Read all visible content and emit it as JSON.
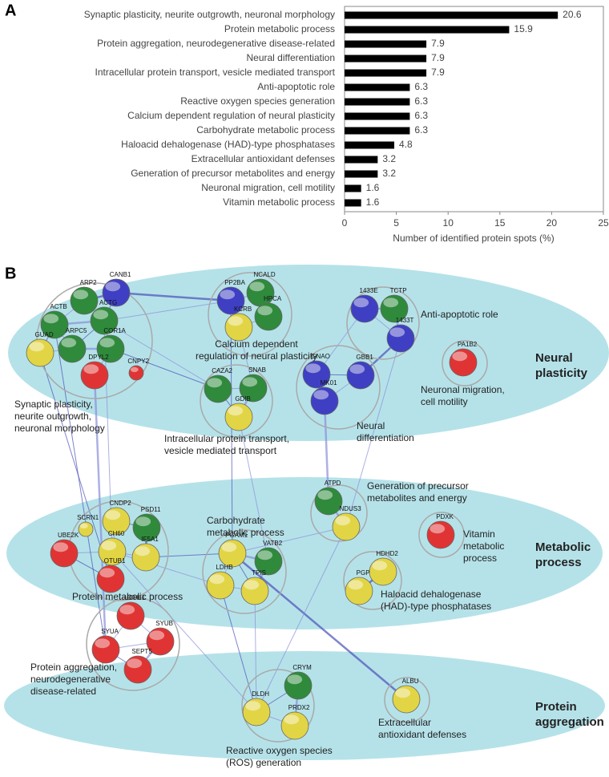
{
  "panel_labels": [
    "A",
    "B"
  ],
  "chart_data": {
    "type": "barh",
    "categories": [
      "Synaptic plasticity, neurite outgrowth, neuronal morphology",
      "Protein metabolic process",
      "Protein aggregation, neurodegenerative disease-related",
      "Neural differentiation",
      "Intracellular protein transport, vesicle mediated transport",
      "Anti-apoptotic role",
      "Reactive oxygen species generation",
      "Calcium dependent regulation of neural plasticity",
      "Carbohydrate metabolic process",
      "Haloacid dehalogenase (HAD)-type phosphatases",
      "Extracellular antioxidant defenses",
      "Generation of precursor metabolites and energy",
      "Neuronal migration, cell motility",
      "Vitamin metabolic process"
    ],
    "values": [
      20.6,
      15.9,
      7.9,
      7.9,
      7.9,
      6.3,
      6.3,
      6.3,
      6.3,
      4.8,
      3.2,
      3.2,
      1.6,
      1.6
    ],
    "color": "#000000",
    "xlabel": "Number of identified protein spots (%)",
    "xlim": [
      0,
      25
    ],
    "xticks": [
      0,
      5,
      10,
      15,
      20,
      25
    ]
  },
  "network": {
    "groups": [
      {
        "lines": [
          "Neural",
          "plasticity"
        ]
      },
      {
        "lines": [
          "Metabolic",
          "process"
        ]
      },
      {
        "lines": [
          "Protein",
          "aggregation"
        ]
      }
    ],
    "clusters": [
      {
        "lines": [
          "Calcium dependent",
          "regulation of neural plasticity"
        ]
      },
      {
        "lines": [
          "Anti-apoptotic role"
        ]
      },
      {
        "lines": [
          "Synaptic plasticity,",
          "neurite outgrowth,",
          "neuronal morphology"
        ]
      },
      {
        "lines": [
          "Intracellular protein transport,",
          "vesicle mediated transport"
        ]
      },
      {
        "lines": [
          "Neuronal migration,",
          "cell motility"
        ]
      },
      {
        "lines": [
          "Neural",
          "differentiation"
        ]
      },
      {
        "lines": [
          "Generation of precursor",
          "metabolites and energy"
        ]
      },
      {
        "lines": [
          "Carbohydrate",
          "metabolic process"
        ]
      },
      {
        "lines": [
          "Vitamin",
          "metabolic",
          "process"
        ]
      },
      {
        "lines": [
          "Protein metabolic process"
        ]
      },
      {
        "lines": [
          "Haloacid dehalogenase",
          "(HAD)-type phosphatases"
        ]
      },
      {
        "lines": [
          "Protein aggregation,",
          "neurodegenerative",
          "disease-related"
        ]
      },
      {
        "lines": [
          "Extracellular",
          "antioxidant defenses"
        ]
      },
      {
        "lines": [
          "Reactive oxygen species",
          "(ROS) generation"
        ]
      }
    ],
    "nodes": [
      {
        "label": "PP2BA",
        "color": "#3f3fc4"
      },
      {
        "label": "NCALD",
        "color": "#2f8a3c"
      },
      {
        "label": "HPCA",
        "color": "#2f8a3c"
      },
      {
        "label": "KCRB",
        "color": "#e2d545"
      },
      {
        "label": "ARP2",
        "color": "#2f8a3c"
      },
      {
        "label": "CANB1",
        "color": "#3f3fc4"
      },
      {
        "label": "ACTB",
        "color": "#2f8a3c"
      },
      {
        "label": "ACTG",
        "color": "#2f8a3c"
      },
      {
        "label": "GUAD",
        "color": "#e2d545"
      },
      {
        "label": "ARPC5",
        "color": "#2f8a3c"
      },
      {
        "label": "COR1A",
        "color": "#2f8a3c"
      },
      {
        "label": "DPYL2",
        "color": "#e03434"
      },
      {
        "label": "CNPY2",
        "color": "#e03434"
      },
      {
        "label": "CAZA2",
        "color": "#2f8a3c"
      },
      {
        "label": "SNAB",
        "color": "#2f8a3c"
      },
      {
        "label": "GDIB",
        "color": "#e2d545"
      },
      {
        "label": "1433E",
        "color": "#3f3fc4"
      },
      {
        "label": "TCTP",
        "color": "#2f8a3c"
      },
      {
        "label": "1433T",
        "color": "#3f3fc4"
      },
      {
        "label": "GNAO",
        "color": "#3f3fc4"
      },
      {
        "label": "GBB1",
        "color": "#3f3fc4"
      },
      {
        "label": "MK01",
        "color": "#3f3fc4"
      },
      {
        "label": "PA1B2",
        "color": "#e03434"
      },
      {
        "label": "ATPD",
        "color": "#2f8a3c"
      },
      {
        "label": "NDUS3",
        "color": "#e2d545"
      },
      {
        "label": "SCRN1",
        "color": "#e2d545"
      },
      {
        "label": "CNDP2",
        "color": "#e2d545"
      },
      {
        "label": "PSD11",
        "color": "#2f8a3c"
      },
      {
        "label": "CH60",
        "color": "#e2d545"
      },
      {
        "label": "IF5A1",
        "color": "#e2d545"
      },
      {
        "label": "UBE2K",
        "color": "#e03434"
      },
      {
        "label": "OTUB1",
        "color": "#e03434"
      },
      {
        "label": "PGAM1",
        "color": "#e2d545"
      },
      {
        "label": "VATB2",
        "color": "#2f8a3c"
      },
      {
        "label": "LDHB",
        "color": "#e2d545"
      },
      {
        "label": "TPIS",
        "color": "#e2d545"
      },
      {
        "label": "PDXK",
        "color": "#e03434"
      },
      {
        "label": "HDHD2",
        "color": "#e2d545"
      },
      {
        "label": "PGP",
        "color": "#e2d545"
      },
      {
        "label": "UCHL1",
        "color": "#e03434"
      },
      {
        "label": "SYUA",
        "color": "#e03434"
      },
      {
        "label": "SYUB",
        "color": "#e03434"
      },
      {
        "label": "SEPT5",
        "color": "#e03434"
      },
      {
        "label": "CRYM",
        "color": "#2f8a3c"
      },
      {
        "label": "DLDH",
        "color": "#e2d545"
      },
      {
        "label": "PRDX2",
        "color": "#e2d545"
      },
      {
        "label": "ALBU",
        "color": "#e2d545"
      }
    ]
  }
}
